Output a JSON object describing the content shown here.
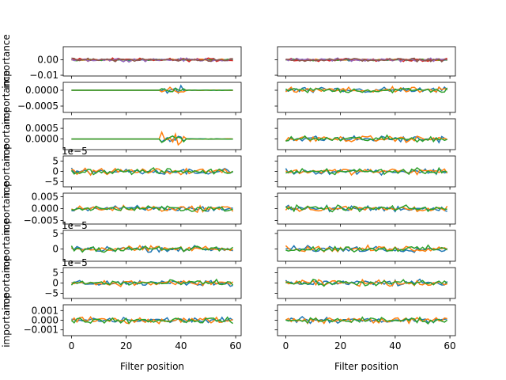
{
  "chart_data": {
    "type": "line",
    "rows": 8,
    "cols": 2,
    "xlim": [
      -3,
      62
    ],
    "x_ticks": [
      0,
      20,
      40,
      60
    ],
    "xlabel": "Filter position",
    "ylabel": "importance",
    "colors": {
      "blue": "#1f77b4",
      "orange": "#ff7f0e",
      "green": "#2ca02c",
      "red": "#d62728",
      "purple": "#9467bd",
      "brown": "#8c564b"
    },
    "panels": [
      {
        "row": 0,
        "ylim": [
          -0.0105,
          0.0085
        ],
        "yticks": [
          0.0,
          -0.01
        ],
        "ytick_labels": [
          "0.00",
          "−0.01"
        ],
        "offset_label": "",
        "n_series": 6
      },
      {
        "row": 1,
        "ylim": [
          -0.0007,
          0.00025
        ],
        "yticks": [
          0.0,
          -0.0005
        ],
        "ytick_labels": [
          "0.0000",
          "−0.0005"
        ],
        "offset_label": "",
        "n_series": 3
      },
      {
        "row": 2,
        "ylim": [
          -0.0005,
          0.00095
        ],
        "yticks": [
          0.0005,
          0.0
        ],
        "ytick_labels": [
          "0.0005",
          "0.0000"
        ],
        "offset_label": "",
        "n_series": 3
      },
      {
        "row": 3,
        "ylim": [
          -7.5,
          7.5
        ],
        "yticks": [
          5,
          0,
          -5
        ],
        "ytick_labels": [
          "5",
          "0",
          "−5"
        ],
        "offset_label": "1e−5",
        "n_series": 3
      },
      {
        "row": 4,
        "ylim": [
          -0.0065,
          0.0065
        ],
        "yticks": [
          0.005,
          0.0,
          -0.005
        ],
        "ytick_labels": [
          "0.005",
          "0.000",
          "−0.005"
        ],
        "offset_label": "",
        "n_series": 3
      },
      {
        "row": 5,
        "ylim": [
          -4.0,
          6.0
        ],
        "yticks": [
          5,
          0
        ],
        "ytick_labels": [
          "5",
          "0"
        ],
        "offset_label": "1e−5",
        "n_series": 3
      },
      {
        "row": 6,
        "ylim": [
          -7.5,
          7.5
        ],
        "yticks": [
          5,
          0,
          -5
        ],
        "ytick_labels": [
          "5",
          "0",
          "−5"
        ],
        "offset_label": "1e−5",
        "n_series": 3
      },
      {
        "row": 7,
        "ylim": [
          -0.0016,
          0.0016
        ],
        "yticks": [
          0.001,
          0.0,
          -0.001
        ],
        "ytick_labels": [
          "0.001",
          "0.000",
          "−0.001"
        ],
        "offset_label": "",
        "n_series": 3
      }
    ]
  }
}
